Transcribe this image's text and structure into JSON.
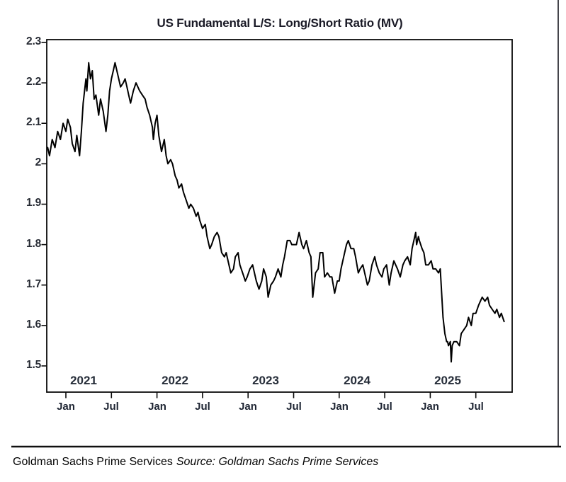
{
  "title": "US Fundamental L/S: Long/Short Ratio (MV)",
  "footer": {
    "provider": "Goldman Sachs Prime Services",
    "source_note": "Source: Goldman Sachs Prime Services"
  },
  "chart_data": {
    "type": "line",
    "title": "US Fundamental L/S: Long/Short Ratio (MV)",
    "xlabel": "",
    "ylabel": "",
    "xlim": [
      2020.78,
      2025.9
    ],
    "ylim": [
      1.5,
      2.3
    ],
    "grid": false,
    "legend": "none",
    "line_color": "#000000",
    "yticks": [
      [
        2.3,
        "2.3"
      ],
      [
        2.2,
        "2.2"
      ],
      [
        2.1,
        "2.1"
      ],
      [
        2.0,
        "2"
      ],
      [
        1.9,
        "1.9"
      ],
      [
        1.8,
        "1.8"
      ],
      [
        1.7,
        "1.7"
      ],
      [
        1.6,
        "1.6"
      ],
      [
        1.5,
        "1.5"
      ]
    ],
    "xticks": [
      [
        2021.0,
        "Jan"
      ],
      [
        2021.5,
        "Jul"
      ],
      [
        2022.0,
        "Jan"
      ],
      [
        2022.5,
        "Jul"
      ],
      [
        2023.0,
        "Jan"
      ],
      [
        2023.5,
        "Jul"
      ],
      [
        2024.0,
        "Jan"
      ],
      [
        2024.5,
        "Jul"
      ],
      [
        2025.0,
        "Jan"
      ],
      [
        2025.5,
        "Jul"
      ]
    ],
    "year_labels": [
      [
        2021,
        "2021"
      ],
      [
        2022,
        "2022"
      ],
      [
        2023,
        "2023"
      ],
      [
        2024,
        "2024"
      ],
      [
        2025,
        "2025"
      ]
    ],
    "series": [
      {
        "name": "US Fundamental L/S Long/Short Ratio (MV)",
        "points": [
          [
            2020.8,
            2.04
          ],
          [
            2020.82,
            2.02
          ],
          [
            2020.85,
            2.06
          ],
          [
            2020.88,
            2.04
          ],
          [
            2020.91,
            2.08
          ],
          [
            2020.94,
            2.06
          ],
          [
            2020.97,
            2.1
          ],
          [
            2021.0,
            2.08
          ],
          [
            2021.02,
            2.11
          ],
          [
            2021.05,
            2.09
          ],
          [
            2021.07,
            2.05
          ],
          [
            2021.1,
            2.03
          ],
          [
            2021.12,
            2.07
          ],
          [
            2021.15,
            2.02
          ],
          [
            2021.17,
            2.08
          ],
          [
            2021.19,
            2.15
          ],
          [
            2021.22,
            2.21
          ],
          [
            2021.23,
            2.18
          ],
          [
            2021.25,
            2.25
          ],
          [
            2021.27,
            2.21
          ],
          [
            2021.29,
            2.23
          ],
          [
            2021.31,
            2.16
          ],
          [
            2021.33,
            2.17
          ],
          [
            2021.36,
            2.12
          ],
          [
            2021.38,
            2.16
          ],
          [
            2021.41,
            2.13
          ],
          [
            2021.44,
            2.08
          ],
          [
            2021.46,
            2.12
          ],
          [
            2021.48,
            2.18
          ],
          [
            2021.5,
            2.21
          ],
          [
            2021.52,
            2.23
          ],
          [
            2021.54,
            2.25
          ],
          [
            2021.57,
            2.22
          ],
          [
            2021.58,
            2.21
          ],
          [
            2021.6,
            2.19
          ],
          [
            2021.63,
            2.2
          ],
          [
            2021.65,
            2.21
          ],
          [
            2021.67,
            2.19
          ],
          [
            2021.69,
            2.17
          ],
          [
            2021.71,
            2.15
          ],
          [
            2021.74,
            2.18
          ],
          [
            2021.77,
            2.2
          ],
          [
            2021.79,
            2.19
          ],
          [
            2021.81,
            2.18
          ],
          [
            2021.84,
            2.17
          ],
          [
            2021.87,
            2.16
          ],
          [
            2021.89,
            2.14
          ],
          [
            2021.92,
            2.12
          ],
          [
            2021.95,
            2.09
          ],
          [
            2021.96,
            2.06
          ],
          [
            2021.98,
            2.1
          ],
          [
            2022.0,
            2.12
          ],
          [
            2022.02,
            2.07
          ],
          [
            2022.05,
            2.03
          ],
          [
            2022.08,
            2.06
          ],
          [
            2022.1,
            2.02
          ],
          [
            2022.12,
            2.0
          ],
          [
            2022.15,
            2.01
          ],
          [
            2022.17,
            2.0
          ],
          [
            2022.2,
            1.97
          ],
          [
            2022.22,
            1.96
          ],
          [
            2022.24,
            1.94
          ],
          [
            2022.27,
            1.95
          ],
          [
            2022.29,
            1.93
          ],
          [
            2022.32,
            1.91
          ],
          [
            2022.35,
            1.89
          ],
          [
            2022.37,
            1.9
          ],
          [
            2022.4,
            1.89
          ],
          [
            2022.43,
            1.87
          ],
          [
            2022.45,
            1.88
          ],
          [
            2022.47,
            1.86
          ],
          [
            2022.5,
            1.84
          ],
          [
            2022.53,
            1.85
          ],
          [
            2022.55,
            1.82
          ],
          [
            2022.58,
            1.79
          ],
          [
            2022.6,
            1.8
          ],
          [
            2022.63,
            1.82
          ],
          [
            2022.66,
            1.83
          ],
          [
            2022.68,
            1.82
          ],
          [
            2022.71,
            1.78
          ],
          [
            2022.74,
            1.77
          ],
          [
            2022.76,
            1.78
          ],
          [
            2022.78,
            1.76
          ],
          [
            2022.81,
            1.73
          ],
          [
            2022.84,
            1.74
          ],
          [
            2022.86,
            1.77
          ],
          [
            2022.89,
            1.78
          ],
          [
            2022.91,
            1.75
          ],
          [
            2022.94,
            1.73
          ],
          [
            2022.97,
            1.71
          ],
          [
            2022.99,
            1.72
          ],
          [
            2023.02,
            1.74
          ],
          [
            2023.05,
            1.75
          ],
          [
            2023.07,
            1.73
          ],
          [
            2023.09,
            1.71
          ],
          [
            2023.12,
            1.69
          ],
          [
            2023.15,
            1.71
          ],
          [
            2023.17,
            1.74
          ],
          [
            2023.2,
            1.72
          ],
          [
            2023.22,
            1.67
          ],
          [
            2023.25,
            1.7
          ],
          [
            2023.28,
            1.71
          ],
          [
            2023.3,
            1.72
          ],
          [
            2023.33,
            1.74
          ],
          [
            2023.36,
            1.72
          ],
          [
            2023.38,
            1.75
          ],
          [
            2023.4,
            1.77
          ],
          [
            2023.43,
            1.81
          ],
          [
            2023.46,
            1.81
          ],
          [
            2023.48,
            1.8
          ],
          [
            2023.51,
            1.8
          ],
          [
            2023.53,
            1.8
          ],
          [
            2023.56,
            1.83
          ],
          [
            2023.59,
            1.8
          ],
          [
            2023.61,
            1.79
          ],
          [
            2023.64,
            1.81
          ],
          [
            2023.67,
            1.78
          ],
          [
            2023.69,
            1.77
          ],
          [
            2023.71,
            1.67
          ],
          [
            2023.74,
            1.73
          ],
          [
            2023.77,
            1.74
          ],
          [
            2023.79,
            1.78
          ],
          [
            2023.82,
            1.78
          ],
          [
            2023.84,
            1.72
          ],
          [
            2023.87,
            1.73
          ],
          [
            2023.9,
            1.72
          ],
          [
            2023.92,
            1.72
          ],
          [
            2023.95,
            1.68
          ],
          [
            2023.98,
            1.71
          ],
          [
            2024.0,
            1.71
          ],
          [
            2024.02,
            1.74
          ],
          [
            2024.05,
            1.77
          ],
          [
            2024.08,
            1.8
          ],
          [
            2024.1,
            1.81
          ],
          [
            2024.13,
            1.79
          ],
          [
            2024.16,
            1.79
          ],
          [
            2024.18,
            1.77
          ],
          [
            2024.21,
            1.73
          ],
          [
            2024.23,
            1.74
          ],
          [
            2024.26,
            1.75
          ],
          [
            2024.29,
            1.72
          ],
          [
            2024.31,
            1.7
          ],
          [
            2024.33,
            1.71
          ],
          [
            2024.36,
            1.75
          ],
          [
            2024.39,
            1.77
          ],
          [
            2024.41,
            1.75
          ],
          [
            2024.44,
            1.73
          ],
          [
            2024.47,
            1.72
          ],
          [
            2024.49,
            1.74
          ],
          [
            2024.52,
            1.75
          ],
          [
            2024.55,
            1.7
          ],
          [
            2024.57,
            1.73
          ],
          [
            2024.6,
            1.76
          ],
          [
            2024.62,
            1.75
          ],
          [
            2024.64,
            1.74
          ],
          [
            2024.67,
            1.72
          ],
          [
            2024.7,
            1.75
          ],
          [
            2024.72,
            1.76
          ],
          [
            2024.75,
            1.77
          ],
          [
            2024.78,
            1.75
          ],
          [
            2024.8,
            1.79
          ],
          [
            2024.83,
            1.82
          ],
          [
            2024.84,
            1.83
          ],
          [
            2024.85,
            1.8
          ],
          [
            2024.87,
            1.82
          ],
          [
            2024.88,
            1.81
          ],
          [
            2024.91,
            1.79
          ],
          [
            2024.93,
            1.78
          ],
          [
            2024.95,
            1.75
          ],
          [
            2024.98,
            1.75
          ],
          [
            2025.01,
            1.76
          ],
          [
            2025.03,
            1.74
          ],
          [
            2025.06,
            1.74
          ],
          [
            2025.09,
            1.73
          ],
          [
            2025.11,
            1.74
          ],
          [
            2025.12,
            1.7
          ],
          [
            2025.14,
            1.62
          ],
          [
            2025.15,
            1.6
          ],
          [
            2025.16,
            1.58
          ],
          [
            2025.18,
            1.56
          ],
          [
            2025.19,
            1.56
          ],
          [
            2025.2,
            1.55
          ],
          [
            2025.22,
            1.56
          ],
          [
            2025.23,
            1.51
          ],
          [
            2025.24,
            1.55
          ],
          [
            2025.26,
            1.56
          ],
          [
            2025.29,
            1.56
          ],
          [
            2025.32,
            1.55
          ],
          [
            2025.34,
            1.58
          ],
          [
            2025.37,
            1.59
          ],
          [
            2025.4,
            1.6
          ],
          [
            2025.42,
            1.62
          ],
          [
            2025.45,
            1.6
          ],
          [
            2025.47,
            1.63
          ],
          [
            2025.5,
            1.63
          ],
          [
            2025.53,
            1.65
          ],
          [
            2025.55,
            1.66
          ],
          [
            2025.57,
            1.67
          ],
          [
            2025.6,
            1.66
          ],
          [
            2025.63,
            1.67
          ],
          [
            2025.65,
            1.65
          ],
          [
            2025.68,
            1.64
          ],
          [
            2025.71,
            1.63
          ],
          [
            2025.73,
            1.64
          ],
          [
            2025.76,
            1.62
          ],
          [
            2025.78,
            1.63
          ],
          [
            2025.81,
            1.61
          ]
        ]
      }
    ]
  }
}
